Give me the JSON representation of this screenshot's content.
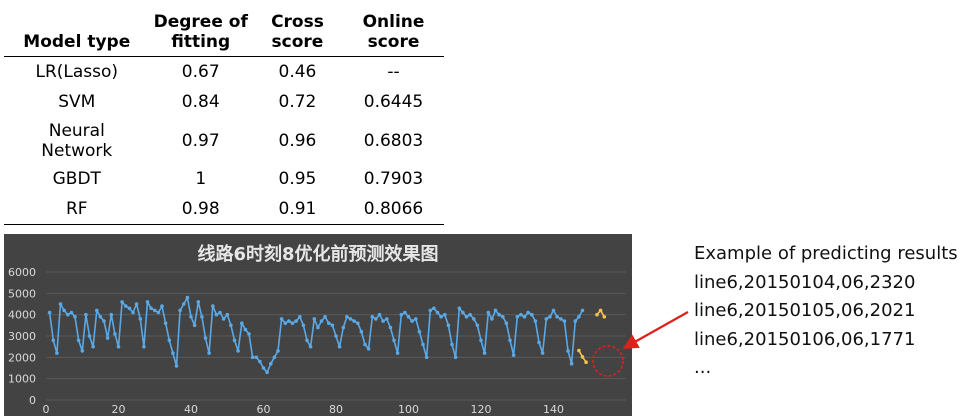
{
  "table": {
    "headers": [
      [
        "Model type"
      ],
      [
        "Degree of",
        "fitting"
      ],
      [
        "Cross",
        "score"
      ],
      [
        "Online",
        "score"
      ]
    ],
    "rows": [
      {
        "model": [
          "LR(Lasso)"
        ],
        "fitting": "0.67",
        "cross": "0.46",
        "online": "--"
      },
      {
        "model": [
          "SVM"
        ],
        "fitting": "0.84",
        "cross": "0.72",
        "online": "0.6445"
      },
      {
        "model": [
          "Neural",
          "Network"
        ],
        "fitting": "0.97",
        "cross": "0.96",
        "online": "0.6803"
      },
      {
        "model": [
          "GBDT"
        ],
        "fitting": "1",
        "cross": "0.95",
        "online": "0.7903"
      },
      {
        "model": [
          "RF"
        ],
        "fitting": "0.98",
        "cross": "0.91",
        "online": "0.8066"
      }
    ]
  },
  "chart_data": {
    "type": "line",
    "title": "线路6时刻8优化前预测效果图",
    "ylim": [
      0,
      6000
    ],
    "yticks": [
      "0",
      "1000",
      "2000",
      "3000",
      "4000",
      "5000",
      "6000"
    ],
    "xlim": [
      0,
      160
    ],
    "xticks": [
      {
        "value": 0,
        "label": "0"
      },
      {
        "value": 20,
        "label": "20"
      },
      {
        "value": 40,
        "label": "40"
      },
      {
        "value": 60,
        "label": "60"
      },
      {
        "value": 80,
        "label": "80"
      },
      {
        "value": 100,
        "label": "100"
      },
      {
        "value": 120,
        "label": "120"
      },
      {
        "value": 140,
        "label": "140"
      }
    ],
    "grid": "horizontal",
    "series": [
      {
        "color": "#5aa9e6",
        "values": [
          4100,
          2800,
          2200,
          4500,
          4200,
          4000,
          4100,
          3900,
          2800,
          2300,
          4000,
          3000,
          2500,
          4200,
          3900,
          3700,
          2900,
          4000,
          3100,
          2500,
          4600,
          4400,
          4300,
          4100,
          4500,
          3800,
          2500,
          4600,
          4300,
          4200,
          4100,
          4400,
          3600,
          2800,
          2200,
          1600,
          4200,
          4500,
          4800,
          3900,
          3500,
          4600,
          3900,
          2900,
          2200,
          4400,
          4000,
          4100,
          3800,
          4000,
          3500,
          2800,
          2300,
          3600,
          3300,
          3100,
          2000,
          2000,
          1800,
          1500,
          1300,
          1700,
          2000,
          2300,
          3800,
          3600,
          3700,
          3600,
          3700,
          3900,
          3500,
          2800,
          2500,
          3800,
          3400,
          3700,
          3900,
          3600,
          3500,
          3000,
          2500,
          3400,
          3900,
          3800,
          3700,
          3600,
          3200,
          2600,
          2400,
          3900,
          3800,
          4000,
          3700,
          3800,
          3400,
          2800,
          2200,
          4000,
          4100,
          3900,
          3700,
          3800,
          3200,
          2600,
          2000,
          4200,
          4300,
          4100,
          3900,
          4000,
          3500,
          2600,
          2000,
          4300,
          4100,
          3900,
          4000,
          3800,
          3500,
          2800,
          2200,
          4100,
          3800,
          4200,
          4000,
          3900,
          3600,
          2800,
          2100,
          3900,
          4000,
          3900,
          4100,
          4000,
          3700,
          2700,
          2200,
          3800,
          3900,
          4200,
          3900,
          3800,
          3700,
          2300,
          1700,
          3700,
          3900,
          4200
        ]
      },
      {
        "color": "#f2c14e",
        "start_index": 147,
        "values": [
          2320,
          2021,
          1771
        ]
      },
      {
        "color": "#f2c14e",
        "start_index": 152,
        "values": [
          4000,
          4200,
          3900
        ]
      }
    ]
  },
  "example": {
    "heading": "Example of predicting results",
    "lines": [
      "line6,20150104,06,2320",
      "line6,20150105,06,2021",
      "line6,20150106,06,1771",
      "..."
    ]
  }
}
